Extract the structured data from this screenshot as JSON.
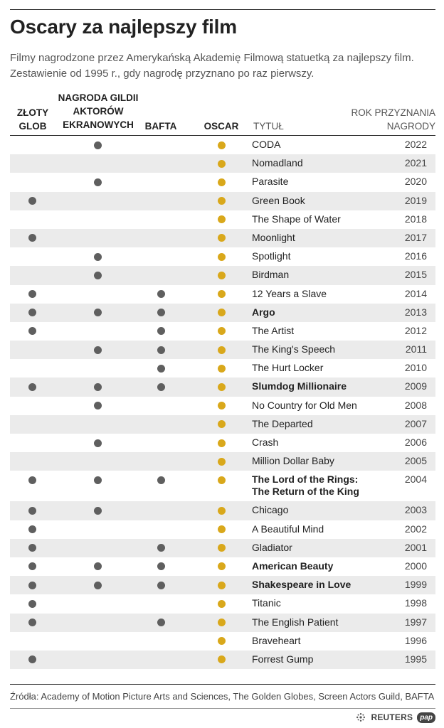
{
  "title": "Oscary za najlepszy film",
  "subtitle": "Filmy nagrodzone przez Amerykańską Akademię Filmową statuetką za najlepszy film. Zestawienie od 1995 r., gdy nagrodę przyznano po raz pierwszy.",
  "source": "Źródła: Academy of Motion Picture Arts and Sciences, The Golden Globes, Screen Actors Guild, BAFTA",
  "credit": {
    "reuters": "REUTERS",
    "pap": "pap"
  },
  "colors": {
    "oscar_dot": "#d9a81b",
    "award_dot": "#5f5f5f",
    "row_shade": "#ebebeb"
  },
  "chart_data": {
    "type": "table",
    "columns": {
      "glob": "ZŁOTY GLOB",
      "sag": "NAGRODA GILDII AKTORÓW EKRANOWYCH",
      "bafta": "BAFTA",
      "oscar": "OSCAR",
      "title": "TYTUŁ",
      "year": "ROK PRZYZNANIA NAGRODY"
    },
    "rows": [
      {
        "title": "CODA",
        "year": "2022",
        "glob": false,
        "sag": true,
        "bafta": false,
        "oscar": true,
        "bold": false
      },
      {
        "title": "Nomadland",
        "year": "2021",
        "glob": false,
        "sag": false,
        "bafta": false,
        "oscar": true,
        "bold": false
      },
      {
        "title": "Parasite",
        "year": "2020",
        "glob": false,
        "sag": true,
        "bafta": false,
        "oscar": true,
        "bold": false
      },
      {
        "title": "Green Book",
        "year": "2019",
        "glob": true,
        "sag": false,
        "bafta": false,
        "oscar": true,
        "bold": false
      },
      {
        "title": "The Shape of Water",
        "year": "2018",
        "glob": false,
        "sag": false,
        "bafta": false,
        "oscar": true,
        "bold": false
      },
      {
        "title": "Moonlight",
        "year": "2017",
        "glob": true,
        "sag": false,
        "bafta": false,
        "oscar": true,
        "bold": false
      },
      {
        "title": "Spotlight",
        "year": "2016",
        "glob": false,
        "sag": true,
        "bafta": false,
        "oscar": true,
        "bold": false
      },
      {
        "title": "Birdman",
        "year": "2015",
        "glob": false,
        "sag": true,
        "bafta": false,
        "oscar": true,
        "bold": false
      },
      {
        "title": "12 Years a Slave",
        "year": "2014",
        "glob": true,
        "sag": false,
        "bafta": true,
        "oscar": true,
        "bold": false
      },
      {
        "title": "Argo",
        "year": "2013",
        "glob": true,
        "sag": true,
        "bafta": true,
        "oscar": true,
        "bold": true
      },
      {
        "title": "The Artist",
        "year": "2012",
        "glob": true,
        "sag": false,
        "bafta": true,
        "oscar": true,
        "bold": false
      },
      {
        "title": "The King's Speech",
        "year": "2011",
        "glob": false,
        "sag": true,
        "bafta": true,
        "oscar": true,
        "bold": false
      },
      {
        "title": "The Hurt Locker",
        "year": "2010",
        "glob": false,
        "sag": false,
        "bafta": true,
        "oscar": true,
        "bold": false
      },
      {
        "title": "Slumdog Millionaire",
        "year": "2009",
        "glob": true,
        "sag": true,
        "bafta": true,
        "oscar": true,
        "bold": true
      },
      {
        "title": "No Country for Old Men",
        "year": "2008",
        "glob": false,
        "sag": true,
        "bafta": false,
        "oscar": true,
        "bold": false
      },
      {
        "title": "The Departed",
        "year": "2007",
        "glob": false,
        "sag": false,
        "bafta": false,
        "oscar": true,
        "bold": false
      },
      {
        "title": "Crash",
        "year": "2006",
        "glob": false,
        "sag": true,
        "bafta": false,
        "oscar": true,
        "bold": false
      },
      {
        "title": "Million Dollar Baby",
        "year": "2005",
        "glob": false,
        "sag": false,
        "bafta": false,
        "oscar": true,
        "bold": false
      },
      {
        "title": "The Lord of the Rings:",
        "title2": "The Return of the King",
        "year": "2004",
        "glob": true,
        "sag": true,
        "bafta": true,
        "oscar": true,
        "bold": true
      },
      {
        "title": "Chicago",
        "year": "2003",
        "glob": true,
        "sag": true,
        "bafta": false,
        "oscar": true,
        "bold": false
      },
      {
        "title": "A Beautiful Mind",
        "year": "2002",
        "glob": true,
        "sag": false,
        "bafta": false,
        "oscar": true,
        "bold": false
      },
      {
        "title": "Gladiator",
        "year": "2001",
        "glob": true,
        "sag": false,
        "bafta": true,
        "oscar": true,
        "bold": false
      },
      {
        "title": "American Beauty",
        "year": "2000",
        "glob": true,
        "sag": true,
        "bafta": true,
        "oscar": true,
        "bold": true
      },
      {
        "title": "Shakespeare in Love",
        "year": "1999",
        "glob": true,
        "sag": true,
        "bafta": true,
        "oscar": true,
        "bold": true
      },
      {
        "title": "Titanic",
        "year": "1998",
        "glob": true,
        "sag": false,
        "bafta": false,
        "oscar": true,
        "bold": false
      },
      {
        "title": "The English Patient",
        "year": "1997",
        "glob": true,
        "sag": false,
        "bafta": true,
        "oscar": true,
        "bold": false
      },
      {
        "title": "Braveheart",
        "year": "1996",
        "glob": false,
        "sag": false,
        "bafta": false,
        "oscar": true,
        "bold": false
      },
      {
        "title": "Forrest Gump",
        "year": "1995",
        "glob": true,
        "sag": false,
        "bafta": false,
        "oscar": true,
        "bold": false
      }
    ]
  }
}
